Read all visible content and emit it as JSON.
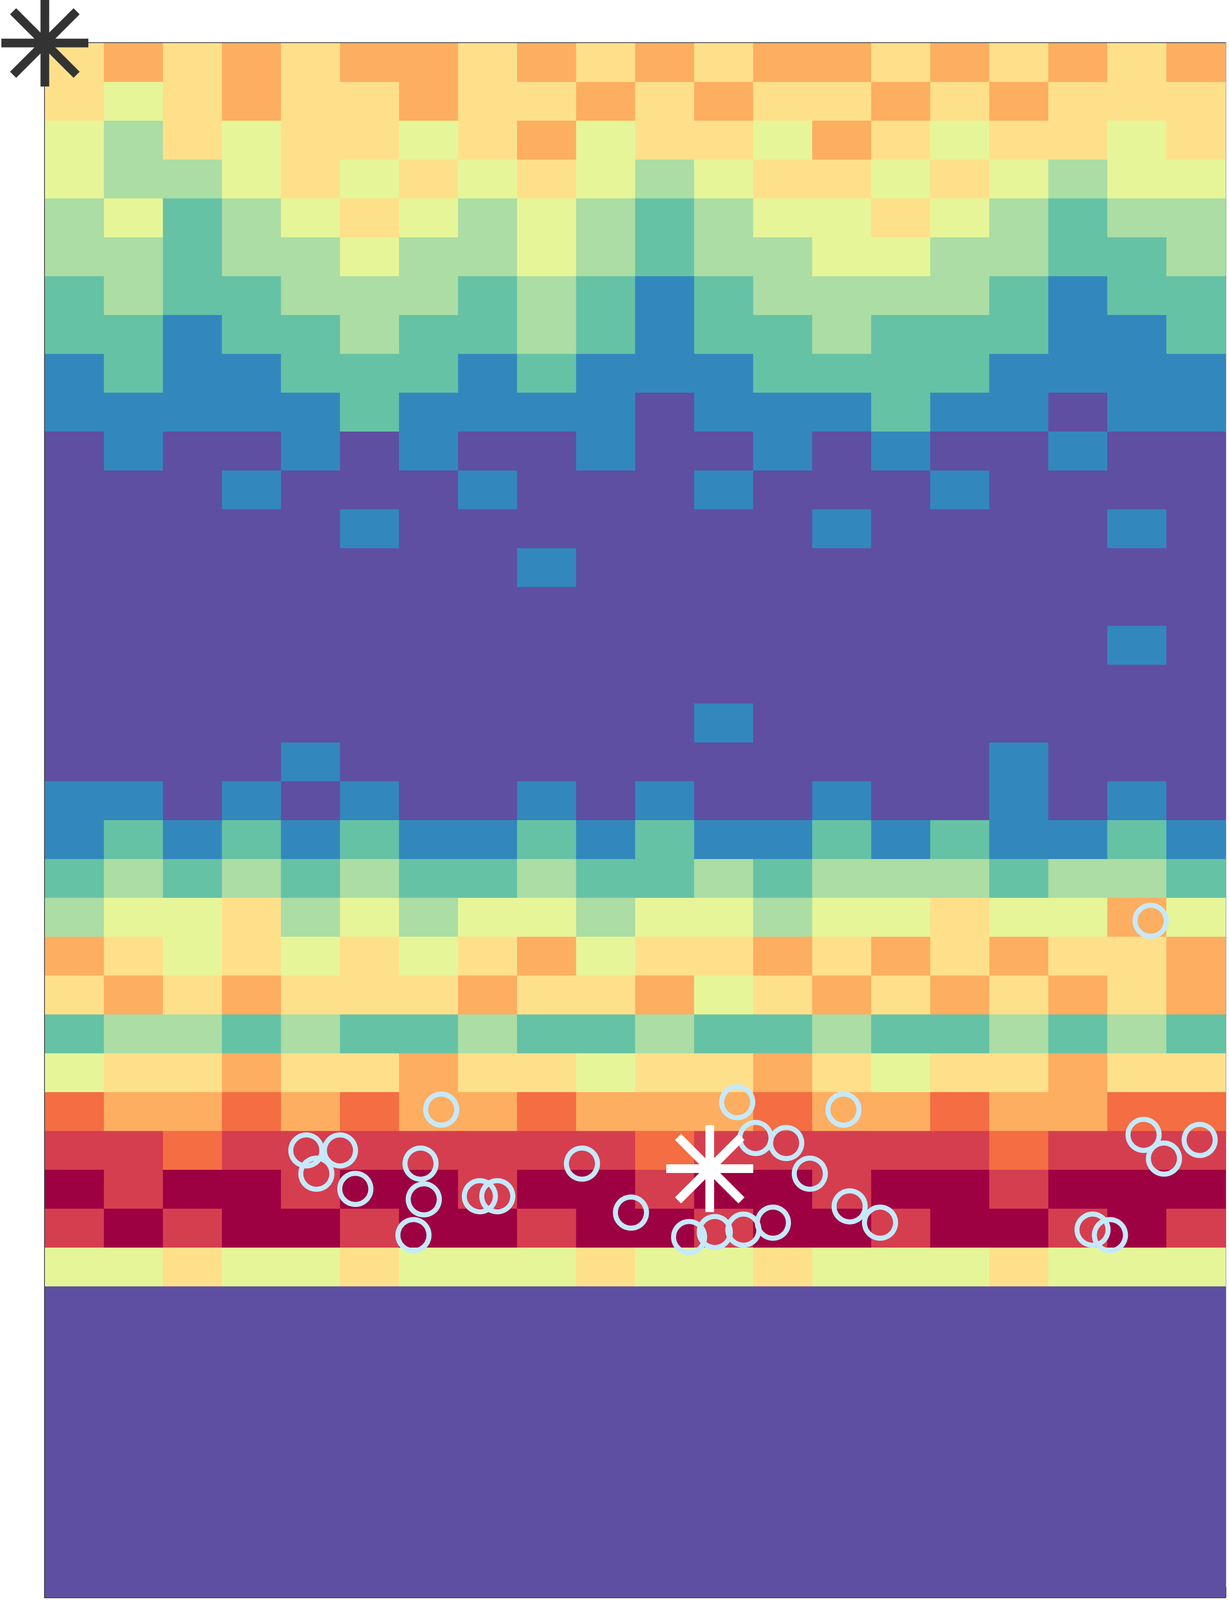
{
  "chart_data": {
    "type": "heatmap",
    "xlim": [
      0,
      4
    ],
    "xticks": [
      0,
      1,
      2,
      3,
      4
    ],
    "ylim": [
      0,
      4
    ],
    "yticks": [
      0,
      1,
      2,
      3,
      4
    ],
    "tick_labels": false,
    "grid": false,
    "color_range": [
      0,
      9
    ],
    "colors": [
      "#5e4fa2",
      "#3288bd",
      "#66c2a5",
      "#abdda4",
      "#e6f598",
      "#fee08b",
      "#fdae61",
      "#f46d43",
      "#d53e4f",
      "#9e0142"
    ],
    "x_centers": [
      0.1,
      0.3,
      0.5,
      0.7,
      0.9,
      1.1,
      1.3,
      1.5,
      1.7,
      1.9,
      2.1,
      2.3,
      2.5,
      2.7,
      2.9,
      3.1,
      3.3,
      3.5,
      3.7,
      3.9
    ],
    "y_centers": [
      3.95,
      3.85,
      3.75,
      3.65,
      3.55,
      3.45,
      3.35,
      3.25,
      3.15,
      3.05,
      2.95,
      2.85,
      2.75,
      2.65,
      2.55,
      2.45,
      2.35,
      2.25,
      2.15,
      2.05,
      1.95,
      1.85,
      1.75,
      1.65,
      1.55,
      1.45,
      1.35,
      1.25,
      1.15,
      1.05,
      0.95,
      0.85,
      0.75,
      0.65,
      0.55,
      0.45,
      0.35,
      0.25,
      0.15,
      0.05
    ],
    "z": [
      [
        5,
        6,
        5,
        6,
        5,
        6,
        6,
        5,
        6,
        5,
        6,
        5,
        6,
        6,
        5,
        6,
        5,
        6,
        5,
        6
      ],
      [
        5,
        4,
        5,
        6,
        5,
        5,
        6,
        5,
        5,
        6,
        5,
        6,
        5,
        5,
        6,
        5,
        6,
        5,
        5,
        5
      ],
      [
        4,
        3,
        5,
        4,
        5,
        5,
        4,
        5,
        6,
        4,
        5,
        5,
        4,
        6,
        5,
        4,
        5,
        5,
        4,
        5
      ],
      [
        4,
        3,
        3,
        4,
        5,
        4,
        5,
        4,
        5,
        4,
        3,
        4,
        5,
        5,
        4,
        5,
        4,
        3,
        4,
        4
      ],
      [
        3,
        4,
        2,
        3,
        4,
        5,
        4,
        3,
        4,
        3,
        2,
        3,
        4,
        4,
        5,
        4,
        3,
        2,
        3,
        3
      ],
      [
        3,
        3,
        2,
        3,
        3,
        4,
        3,
        3,
        4,
        3,
        2,
        3,
        3,
        4,
        4,
        3,
        3,
        2,
        2,
        3
      ],
      [
        2,
        3,
        2,
        2,
        3,
        3,
        3,
        2,
        3,
        2,
        1,
        2,
        3,
        3,
        3,
        3,
        2,
        1,
        2,
        2
      ],
      [
        2,
        2,
        1,
        2,
        2,
        3,
        2,
        2,
        3,
        2,
        1,
        2,
        2,
        3,
        2,
        2,
        2,
        1,
        1,
        2
      ],
      [
        1,
        2,
        1,
        1,
        2,
        2,
        2,
        1,
        2,
        1,
        1,
        1,
        2,
        2,
        2,
        2,
        1,
        1,
        1,
        1
      ],
      [
        1,
        1,
        1,
        1,
        1,
        2,
        1,
        1,
        1,
        1,
        0,
        1,
        1,
        1,
        2,
        1,
        1,
        0,
        1,
        1
      ],
      [
        0,
        1,
        0,
        0,
        1,
        0,
        1,
        0,
        0,
        1,
        0,
        0,
        1,
        0,
        1,
        0,
        0,
        1,
        0,
        0
      ],
      [
        0,
        0,
        0,
        1,
        0,
        0,
        0,
        1,
        0,
        0,
        0,
        1,
        0,
        0,
        0,
        1,
        0,
        0,
        0,
        0
      ],
      [
        0,
        0,
        0,
        0,
        0,
        1,
        0,
        0,
        0,
        0,
        0,
        0,
        0,
        1,
        0,
        0,
        0,
        0,
        1,
        0
      ],
      [
        0,
        0,
        0,
        0,
        0,
        0,
        0,
        0,
        1,
        0,
        0,
        0,
        0,
        0,
        0,
        0,
        0,
        0,
        0,
        0
      ],
      [
        0,
        0,
        0,
        0,
        0,
        0,
        0,
        0,
        0,
        0,
        0,
        0,
        0,
        0,
        0,
        0,
        0,
        0,
        0,
        0
      ],
      [
        0,
        0,
        0,
        0,
        0,
        0,
        0,
        0,
        0,
        0,
        0,
        0,
        0,
        0,
        0,
        0,
        0,
        0,
        1,
        0
      ],
      [
        0,
        0,
        0,
        0,
        0,
        0,
        0,
        0,
        0,
        0,
        0,
        0,
        0,
        0,
        0,
        0,
        0,
        0,
        0,
        0
      ],
      [
        0,
        0,
        0,
        0,
        0,
        0,
        0,
        0,
        0,
        0,
        0,
        1,
        0,
        0,
        0,
        0,
        0,
        0,
        0,
        0
      ],
      [
        0,
        0,
        0,
        0,
        1,
        0,
        0,
        0,
        0,
        0,
        0,
        0,
        0,
        0,
        0,
        0,
        1,
        0,
        0,
        0
      ],
      [
        1,
        1,
        0,
        1,
        0,
        1,
        0,
        0,
        1,
        0,
        1,
        0,
        0,
        1,
        0,
        0,
        1,
        0,
        1,
        0
      ],
      [
        1,
        2,
        1,
        2,
        1,
        2,
        1,
        1,
        2,
        1,
        2,
        1,
        1,
        2,
        1,
        2,
        1,
        1,
        2,
        1
      ],
      [
        2,
        3,
        2,
        3,
        2,
        3,
        2,
        2,
        3,
        2,
        2,
        3,
        2,
        3,
        3,
        3,
        2,
        3,
        3,
        2
      ],
      [
        3,
        4,
        4,
        5,
        3,
        4,
        3,
        4,
        4,
        3,
        4,
        4,
        3,
        4,
        4,
        5,
        4,
        4,
        6,
        4
      ],
      [
        6,
        5,
        4,
        5,
        4,
        5,
        4,
        5,
        6,
        4,
        5,
        5,
        6,
        5,
        6,
        5,
        6,
        5,
        5,
        6
      ],
      [
        5,
        6,
        5,
        6,
        5,
        5,
        5,
        6,
        5,
        5,
        6,
        4,
        5,
        6,
        5,
        6,
        5,
        6,
        5,
        6
      ],
      [
        2,
        3,
        3,
        2,
        3,
        2,
        2,
        3,
        2,
        2,
        3,
        2,
        2,
        3,
        2,
        2,
        3,
        2,
        3,
        2
      ],
      [
        4,
        5,
        5,
        6,
        5,
        5,
        6,
        5,
        5,
        4,
        5,
        5,
        6,
        5,
        4,
        5,
        5,
        6,
        5,
        5
      ],
      [
        7,
        6,
        6,
        7,
        6,
        7,
        6,
        6,
        7,
        6,
        6,
        6,
        7,
        6,
        6,
        7,
        6,
        6,
        7,
        7
      ],
      [
        8,
        8,
        7,
        8,
        8,
        8,
        8,
        8,
        8,
        8,
        7,
        8,
        8,
        8,
        8,
        8,
        7,
        8,
        8,
        8
      ],
      [
        9,
        8,
        9,
        9,
        8,
        9,
        9,
        8,
        9,
        9,
        8,
        9,
        9,
        8,
        9,
        9,
        8,
        9,
        9,
        9
      ],
      [
        8,
        9,
        8,
        9,
        9,
        8,
        9,
        9,
        8,
        9,
        9,
        8,
        9,
        9,
        8,
        9,
        9,
        8,
        9,
        8
      ],
      [
        4,
        4,
        5,
        4,
        4,
        5,
        4,
        4,
        4,
        5,
        4,
        4,
        5,
        4,
        4,
        4,
        5,
        4,
        4,
        4
      ],
      [
        0,
        0,
        0,
        0,
        0,
        0,
        0,
        0,
        0,
        0,
        0,
        0,
        0,
        0,
        0,
        0,
        0,
        0,
        0,
        0
      ],
      [
        0,
        0,
        0,
        0,
        0,
        0,
        0,
        0,
        0,
        0,
        0,
        0,
        0,
        0,
        0,
        0,
        0,
        0,
        0,
        0
      ],
      [
        0,
        0,
        0,
        0,
        0,
        0,
        0,
        0,
        0,
        0,
        0,
        0,
        0,
        0,
        0,
        0,
        0,
        0,
        0,
        0
      ],
      [
        0,
        0,
        0,
        0,
        0,
        0,
        0,
        0,
        0,
        0,
        0,
        0,
        0,
        0,
        0,
        0,
        0,
        0,
        0,
        0
      ],
      [
        0,
        0,
        0,
        0,
        0,
        0,
        0,
        0,
        0,
        0,
        0,
        0,
        0,
        0,
        0,
        0,
        0,
        0,
        0,
        0
      ],
      [
        0,
        0,
        0,
        0,
        0,
        0,
        0,
        0,
        0,
        0,
        0,
        0,
        0,
        0,
        0,
        0,
        0,
        0,
        0,
        0
      ],
      [
        0,
        0,
        0,
        0,
        0,
        0,
        0,
        0,
        0,
        0,
        0,
        0,
        0,
        0,
        0,
        0,
        0,
        0,
        0,
        0
      ],
      [
        0,
        0,
        0,
        0,
        0,
        0,
        0,
        0,
        0,
        0,
        0,
        0,
        0,
        0,
        0,
        0,
        0,
        0,
        0,
        0
      ]
    ],
    "series": [
      {
        "type": "scatter",
        "marker": "circle",
        "color": "#c6e9fa",
        "x": [
          3.747,
          1.343,
          2.346,
          2.706,
          0.886,
          1.0,
          0.92,
          1.052,
          1.273,
          1.284,
          1.249,
          1.474,
          1.533,
          1.82,
          1.986,
          2.183,
          2.27,
          2.367,
          2.467,
          2.408,
          2.512,
          2.592,
          2.727,
          2.83,
          3.723,
          3.792,
          3.913,
          3.55,
          3.609
        ],
        "values": [
          1.741,
          1.255,
          1.274,
          1.255,
          1.15,
          1.15,
          1.09,
          1.051,
          1.116,
          1.024,
          0.932,
          1.032,
          1.032,
          1.116,
          0.99,
          0.927,
          0.94,
          0.946,
          0.964,
          1.182,
          1.169,
          1.09,
          1.006,
          0.964,
          1.19,
          1.129,
          1.177,
          0.946,
          0.932
        ]
      },
      {
        "type": "scatter",
        "marker": "asterisk",
        "color": "#ffffff",
        "x": [
          2.253
        ],
        "values": [
          1.103
        ]
      },
      {
        "type": "scatter",
        "marker": "asterisk",
        "color": "#333333",
        "x": [
          0
        ],
        "values": [
          4
        ]
      }
    ]
  }
}
